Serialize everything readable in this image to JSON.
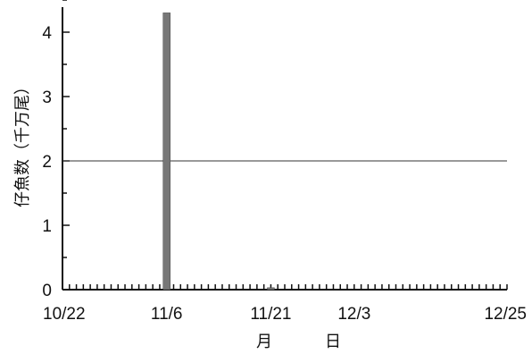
{
  "chart_data": {
    "type": "bar",
    "title": "",
    "ylabel": "仔魚数（千万尾）",
    "xlabel_parts": [
      "月",
      "日"
    ],
    "x_start": "10/22",
    "x_end": "12/25",
    "x_tick_labels": [
      {
        "label": "10/22",
        "day": 0
      },
      {
        "label": "11/6",
        "day": 15
      },
      {
        "label": "11/21",
        "day": 30
      },
      {
        "label": "12/3",
        "day": 42
      },
      {
        "label": "12/25",
        "day": 64
      }
    ],
    "ylim": [
      0,
      4.5
    ],
    "y_ticks": [
      0,
      1,
      2,
      3,
      4
    ],
    "reference_line": 2,
    "bars": [
      {
        "date": "11/6",
        "day": 15,
        "value": 4.3
      },
      {
        "date": "11/21",
        "day": 30,
        "value": 0.03
      }
    ],
    "bar_color": "#777777",
    "grid": false
  }
}
